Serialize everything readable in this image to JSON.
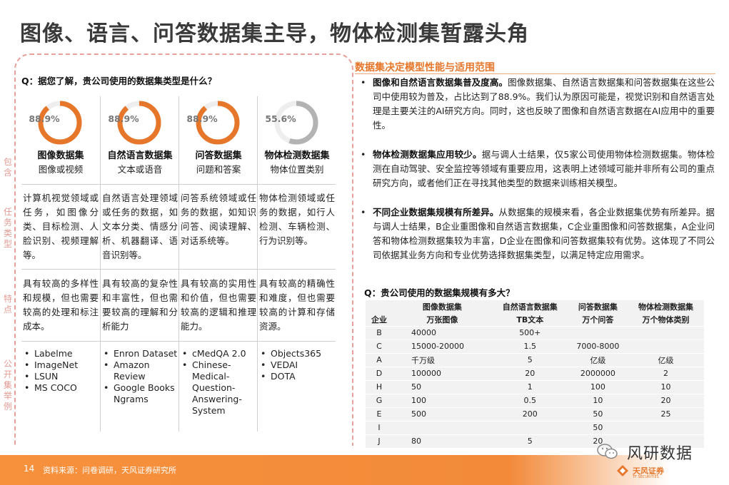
{
  "page_title": "图像、语言、问答数据集主导，物体检测集暂露头角",
  "left": {
    "question": "Q：据您了解，贵公司使用的数据集类型是什么？",
    "side_labels": [
      "包含",
      "任务类型",
      "特点",
      "公开集举例"
    ],
    "columns": [
      {
        "percent": "88.9%",
        "value": 0.889,
        "color": "#e5762a",
        "head": "图像数据集",
        "sub": "图像或视频",
        "task": "计算机视觉领域或任务，如图像分类、目标检测、人脸识别、视频理解等。",
        "feature": "具有较高的多样性和规模，但也需要较高的处理和标注成本。",
        "examples": [
          "Labelme",
          "ImageNet",
          "LSUN",
          "MS COCO"
        ]
      },
      {
        "percent": "88.9%",
        "value": 0.889,
        "color": "#e5762a",
        "head": "自然语言数据集",
        "sub": "文本或语音",
        "task": "自然语言处理领域或任务的数据，如文本分类、情感分析、机器翻译、语音识别等。",
        "feature": "具有较高的复杂性和丰富性，但也需要较高的理解和分析能力",
        "examples": [
          "Enron Dataset",
          "Amazon Review",
          "Google Books Ngrams"
        ]
      },
      {
        "percent": "88.9%",
        "value": 0.889,
        "color": "#e5762a",
        "head": "问答数据集",
        "sub": "问题和答案",
        "task": "问答系统领域或任务的数据，如知识问答、阅读理解、对话系统等。",
        "feature": "具有较高的实用性和价值，但也需要较高的逻辑和推理能力。",
        "examples": [
          "cMedQA 2.0",
          "Chinese-Medical-Question-Answering-System"
        ]
      },
      {
        "percent": "55.6%",
        "value": 0.556,
        "color": "#b3b3b3",
        "head": "物体检测数据集",
        "sub": "物体位置类别",
        "task": "物体检测领域或任务的数据，如行人检测、车辆检测、行为识别等。",
        "feature": "具有较高的精确性和难度，但也需要较高的计算和存储资源。",
        "examples": [
          "Objects365",
          "VEDAI",
          "DOTA"
        ]
      }
    ]
  },
  "right": {
    "title": "数据集决定模型性能与适用范围",
    "bullets": [
      {
        "bold": "图像和自然语言数据集普及度高。",
        "text": "图像数据集、自然语言数据集和问答数据集在这些公司中使用较为普及，占比达到了88.9%。我们认为原因可能是，视觉识别和自然语言处理是主要关注的AI研究方向。同时，这也反映了图像和自然语言数据在AI应用中的重要性。"
      },
      {
        "bold": "物体检测数据集应用较少。",
        "text": "据与调人士结果，仅5家公司使用物体检测数据集。物体检测在自动驾驶、安全监控等领域有重要应用，这表明上述领域可能并非所有公司的重点研究方向，或者他们正在寻找其他类型的数据来训练相关模型。"
      },
      {
        "bold": "不同企业数据集规模有所差异。",
        "text": "从数据集的规模来看，各企业数据集优势有所差异。据与调人士结果，B企业重图像和自然语言数据集，C企业重图像和问答数据集，A企业问答和物体检测数据集较为丰富，D企业在图像和问答数据集较有优势。这体现了不同公司依据其业务方向和专业优势选择数据集类型，以满足特定应用需求。"
      }
    ],
    "table_question": "Q：贵公司使用的数据集规模有多大？",
    "table": {
      "headers": [
        "企业",
        "图像数据集",
        "自然语言数据集",
        "问答数据集",
        "物体检测数据集"
      ],
      "units": [
        "",
        "万张图像",
        "TB文本",
        "万个问答",
        "万个物体类别"
      ],
      "rows": [
        [
          "B",
          "40000",
          "500+",
          "",
          ""
        ],
        [
          "C",
          "15000-20000",
          "1.5",
          "7000-8000",
          ""
        ],
        [
          "A",
          "千万级",
          "5",
          "亿级",
          "亿级"
        ],
        [
          "D",
          "100000",
          "20",
          "2000000",
          "2"
        ],
        [
          "H",
          "50",
          "1",
          "100",
          "10"
        ],
        [
          "G",
          "100",
          "0.5",
          "10",
          "20"
        ],
        [
          "E",
          "500",
          "200",
          "50",
          "25"
        ],
        [
          "I",
          "",
          "",
          "50",
          ""
        ],
        [
          "J",
          "80",
          "5",
          "20",
          ""
        ]
      ]
    }
  },
  "footer": {
    "page_number": "14",
    "source": "资料来源：问卷调研，天风证券研究所",
    "watermark": "风研数据",
    "logo_name": "天风证券",
    "logo_sub": "TF SECURITIES"
  },
  "colors": {
    "accent": "#e5762a",
    "ring_gray": "#b3b3b3",
    "footer": "#f7913c"
  }
}
